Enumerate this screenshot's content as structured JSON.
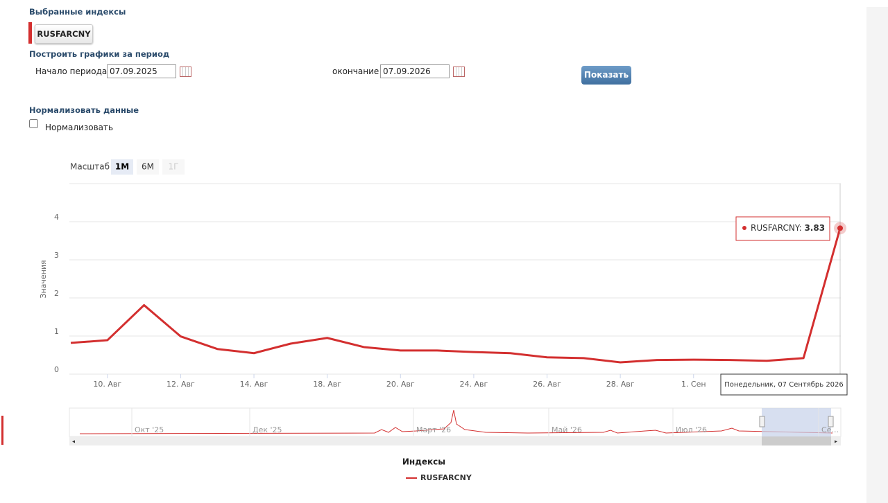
{
  "selected_indices": {
    "title": "Выбранные индексы",
    "items": [
      "RUSFARCNY"
    ]
  },
  "period": {
    "title": "Построить графики за период",
    "start_label": "Начало периода",
    "start_value": "07.09.2025",
    "end_label": "окончание",
    "end_value": "07.09.2026",
    "button": "Показать"
  },
  "normalize": {
    "title": "Нормализовать данные",
    "checkbox_label": "Нормализовать",
    "checked": false
  },
  "chart_data": {
    "type": "line",
    "zoom_label": "Масштаб",
    "zoom_buttons": [
      "1М",
      "6М",
      "1Г"
    ],
    "y_label": "Значения",
    "categories": [
      null,
      "10. Авг",
      null,
      "12. Авг",
      null,
      "14. Авг",
      null,
      "18. Авг",
      null,
      "20. Авг",
      null,
      "24. Авг",
      null,
      "26. Авг",
      null,
      "28. Авг",
      null,
      "1. Сен",
      null,
      null,
      null,
      null
    ],
    "series": [
      {
        "name": "RUSFARCNY",
        "color": "#d32f2f",
        "values": [
          0.82,
          0.89,
          1.81,
          0.99,
          0.66,
          0.55,
          0.8,
          0.95,
          0.71,
          0.62,
          0.62,
          0.58,
          0.55,
          0.44,
          0.42,
          0.31,
          0.37,
          0.38,
          0.37,
          0.35,
          0.42,
          3.83
        ]
      }
    ],
    "ylim": [
      0,
      5
    ],
    "yticks": [
      0,
      1,
      2,
      3,
      4
    ],
    "grid": true,
    "tooltip_date": "Понедельник, 07 Сентябрь 2026",
    "navigator_labels": [
      "Окт '25",
      "Дек '25",
      "Март '26",
      "Май '26",
      "Июл '26",
      "Се..."
    ],
    "legend_title": "Индексы"
  }
}
